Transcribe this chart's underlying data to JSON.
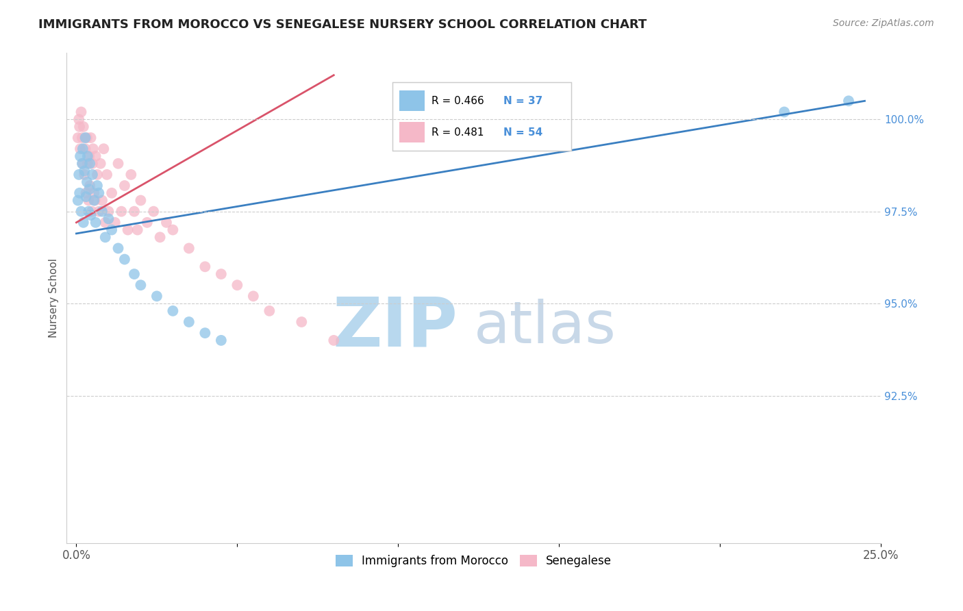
{
  "title": "IMMIGRANTS FROM MOROCCO VS SENEGALESE NURSERY SCHOOL CORRELATION CHART",
  "source": "Source: ZipAtlas.com",
  "ylabel": "Nursery School",
  "xlim": [
    -0.3,
    25.0
  ],
  "ylim": [
    88.5,
    101.8
  ],
  "xticks": [
    0.0,
    5.0,
    10.0,
    15.0,
    20.0,
    25.0
  ],
  "xtick_labels": [
    "0.0%",
    "",
    "",
    "",
    "",
    "25.0%"
  ],
  "yticks": [
    92.5,
    95.0,
    97.5,
    100.0
  ],
  "ytick_labels": [
    "92.5%",
    "95.0%",
    "97.5%",
    "100.0%"
  ],
  "legend_r1": "R = 0.466",
  "legend_n1": "N = 37",
  "legend_r2": "R = 0.481",
  "legend_n2": "N = 54",
  "color_blue": "#8ec4e8",
  "color_pink": "#f5b8c8",
  "color_blue_line": "#3a7fc1",
  "color_pink_line": "#d9536a",
  "color_text_blue": "#4a90d9",
  "background_color": "#ffffff",
  "grid_color": "#cccccc",
  "watermark_zip": "ZIP",
  "watermark_atlas": "atlas",
  "watermark_color_zip": "#b8d8ee",
  "watermark_color_atlas": "#c8d8e8",
  "series1_name": "Immigrants from Morocco",
  "series2_name": "Senegalese",
  "morocco_x": [
    0.05,
    0.08,
    0.1,
    0.12,
    0.15,
    0.18,
    0.2,
    0.22,
    0.25,
    0.28,
    0.3,
    0.33,
    0.35,
    0.38,
    0.4,
    0.42,
    0.45,
    0.5,
    0.55,
    0.6,
    0.65,
    0.7,
    0.8,
    0.9,
    1.0,
    1.1,
    1.3,
    1.5,
    1.8,
    2.0,
    2.5,
    3.0,
    3.5,
    4.0,
    4.5,
    22.0,
    24.0
  ],
  "morocco_y": [
    97.8,
    98.5,
    98.0,
    99.0,
    97.5,
    98.8,
    99.2,
    97.2,
    98.6,
    99.5,
    97.9,
    98.3,
    99.0,
    97.5,
    98.1,
    98.8,
    97.4,
    98.5,
    97.8,
    97.2,
    98.2,
    98.0,
    97.5,
    96.8,
    97.3,
    97.0,
    96.5,
    96.2,
    95.8,
    95.5,
    95.2,
    94.8,
    94.5,
    94.2,
    94.0,
    100.2,
    100.5
  ],
  "senegal_x": [
    0.05,
    0.08,
    0.1,
    0.12,
    0.15,
    0.18,
    0.2,
    0.22,
    0.25,
    0.28,
    0.3,
    0.33,
    0.35,
    0.38,
    0.4,
    0.42,
    0.45,
    0.48,
    0.5,
    0.52,
    0.55,
    0.58,
    0.6,
    0.65,
    0.7,
    0.75,
    0.8,
    0.85,
    0.9,
    0.95,
    1.0,
    1.1,
    1.2,
    1.3,
    1.4,
    1.5,
    1.6,
    1.7,
    1.8,
    1.9,
    2.0,
    2.2,
    2.4,
    2.6,
    2.8,
    3.0,
    3.5,
    4.0,
    4.5,
    5.0,
    5.5,
    6.0,
    7.0,
    8.0
  ],
  "senegal_y": [
    99.5,
    100.0,
    99.8,
    99.2,
    100.2,
    99.5,
    98.8,
    99.8,
    98.5,
    99.2,
    98.0,
    99.5,
    98.8,
    97.8,
    99.0,
    98.2,
    99.5,
    97.5,
    98.8,
    99.2,
    98.0,
    97.8,
    99.0,
    98.5,
    97.5,
    98.8,
    97.8,
    99.2,
    97.2,
    98.5,
    97.5,
    98.0,
    97.2,
    98.8,
    97.5,
    98.2,
    97.0,
    98.5,
    97.5,
    97.0,
    97.8,
    97.2,
    97.5,
    96.8,
    97.2,
    97.0,
    96.5,
    96.0,
    95.8,
    95.5,
    95.2,
    94.8,
    94.5,
    94.0
  ],
  "blue_trend_x0": 0.0,
  "blue_trend_y0": 96.9,
  "blue_trend_x1": 24.5,
  "blue_trend_y1": 100.5,
  "pink_trend_x0": 0.0,
  "pink_trend_y0": 97.2,
  "pink_trend_x1": 8.0,
  "pink_trend_y1": 101.2
}
